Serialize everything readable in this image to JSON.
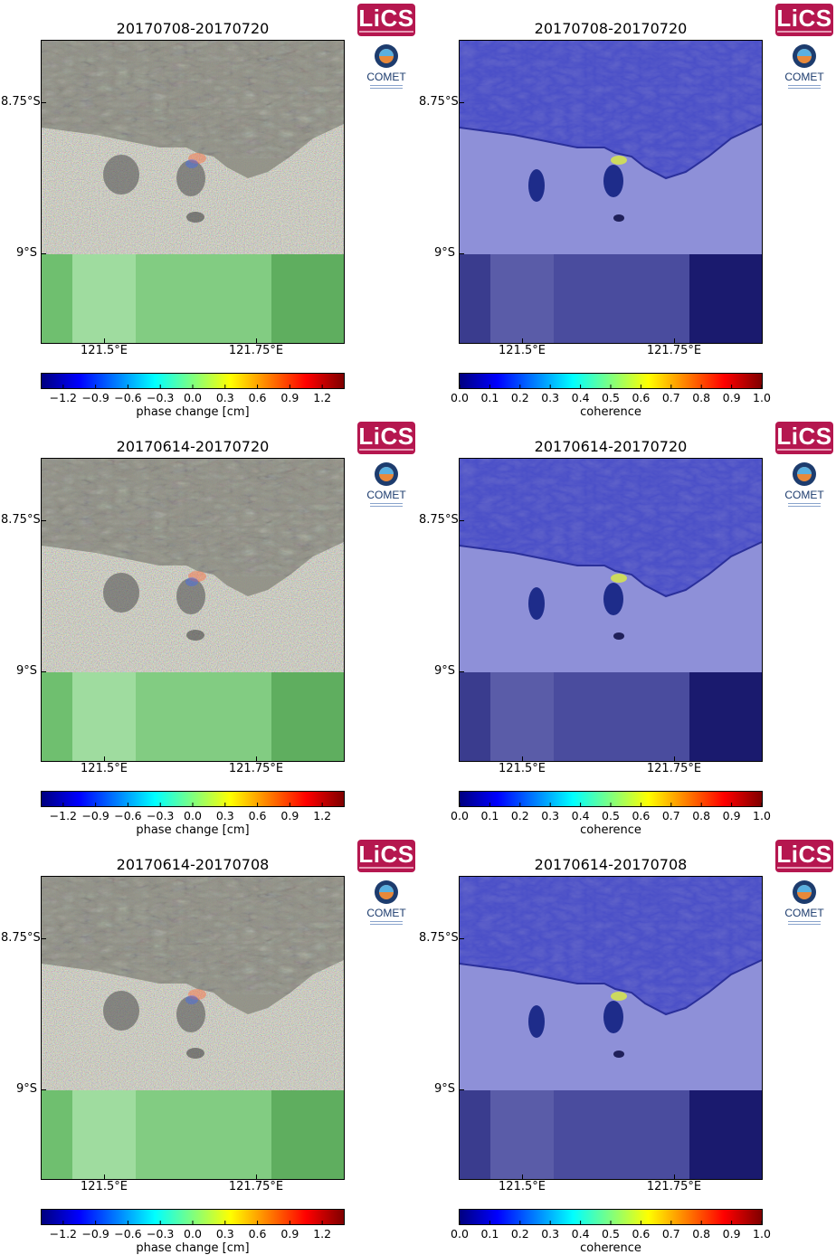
{
  "panels": [
    {
      "title": "20170708-20170720",
      "kind": "phase"
    },
    {
      "title": "20170708-20170720",
      "kind": "coherence"
    },
    {
      "title": "20170614-20170720",
      "kind": "phase"
    },
    {
      "title": "20170614-20170720",
      "kind": "coherence"
    },
    {
      "title": "20170614-20170708",
      "kind": "phase"
    },
    {
      "title": "20170614-20170708",
      "kind": "coherence"
    }
  ],
  "axes": {
    "lat_labels": [
      "8.75°S",
      "9°S"
    ],
    "lon_labels": [
      "121.5°E",
      "121.75°E"
    ]
  },
  "phase_colorbar": {
    "label": "phase change [cm]",
    "ticks": [
      "−1.2",
      "−0.9",
      "−0.6",
      "−0.3",
      "0.0",
      "0.3",
      "0.6",
      "0.9",
      "1.2"
    ],
    "range": [
      -1.4,
      1.4
    ]
  },
  "coherence_colorbar": {
    "label": "coherence",
    "ticks": [
      "0.0",
      "0.1",
      "0.2",
      "0.3",
      "0.4",
      "0.5",
      "0.6",
      "0.7",
      "0.8",
      "0.9",
      "1.0"
    ],
    "range": [
      0,
      1
    ]
  },
  "logos": {
    "lics": "LiCS",
    "comet": "COMET"
  },
  "colors": {
    "lics_brand": "#b5174f",
    "phase_sea_green": "#6fbf6f",
    "coherence_land": "#4a4fc8",
    "coherence_sea": "#8e90d8",
    "coherence_low": "#1a1a6e"
  }
}
